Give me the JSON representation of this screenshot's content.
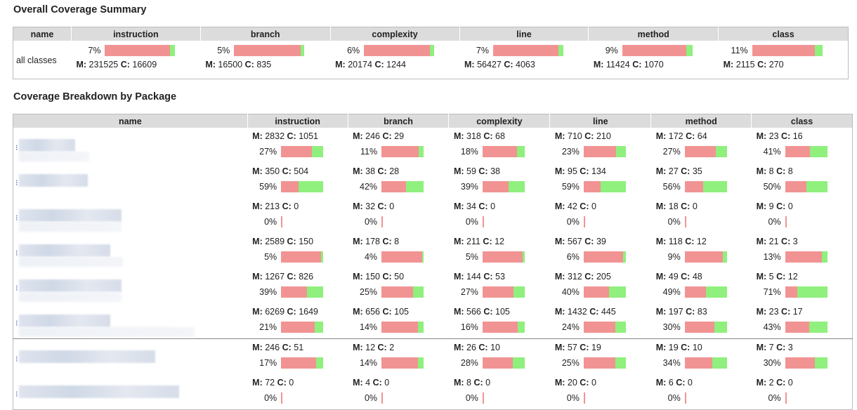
{
  "summary": {
    "title": "Overall Coverage Summary",
    "headers": [
      "name",
      "instruction",
      "branch",
      "complexity",
      "line",
      "method",
      "class"
    ],
    "row": {
      "name": "all classes",
      "metrics": [
        {
          "pct": "7%",
          "m": "231525",
          "c": "16609",
          "covered_fraction": 0.07
        },
        {
          "pct": "5%",
          "m": "16500",
          "c": "835",
          "covered_fraction": 0.05
        },
        {
          "pct": "6%",
          "m": "20174",
          "c": "1244",
          "covered_fraction": 0.06
        },
        {
          "pct": "7%",
          "m": "56427",
          "c": "4063",
          "covered_fraction": 0.07
        },
        {
          "pct": "9%",
          "m": "11424",
          "c": "1070",
          "covered_fraction": 0.09
        },
        {
          "pct": "11%",
          "m": "2115",
          "c": "270",
          "covered_fraction": 0.11
        }
      ]
    },
    "m_label": "M:",
    "c_label": "C:"
  },
  "breakdown": {
    "title": "Coverage Breakdown by Package",
    "headers": [
      "name",
      "instruction",
      "branch",
      "complexity",
      "line",
      "method",
      "class"
    ],
    "rows": [
      {
        "metrics": [
          {
            "pct": "27%",
            "m": "2832",
            "c": "1051",
            "covered_fraction": 0.27
          },
          {
            "pct": "11%",
            "m": "246",
            "c": "29",
            "covered_fraction": 0.11
          },
          {
            "pct": "18%",
            "m": "318",
            "c": "68",
            "covered_fraction": 0.18
          },
          {
            "pct": "23%",
            "m": "710",
            "c": "210",
            "covered_fraction": 0.23
          },
          {
            "pct": "27%",
            "m": "172",
            "c": "64",
            "covered_fraction": 0.27
          },
          {
            "pct": "41%",
            "m": "23",
            "c": "16",
            "covered_fraction": 0.41
          }
        ]
      },
      {
        "metrics": [
          {
            "pct": "59%",
            "m": "350",
            "c": "504",
            "covered_fraction": 0.59
          },
          {
            "pct": "42%",
            "m": "38",
            "c": "28",
            "covered_fraction": 0.42
          },
          {
            "pct": "39%",
            "m": "59",
            "c": "38",
            "covered_fraction": 0.39
          },
          {
            "pct": "59%",
            "m": "95",
            "c": "134",
            "covered_fraction": 0.59
          },
          {
            "pct": "56%",
            "m": "27",
            "c": "35",
            "covered_fraction": 0.56
          },
          {
            "pct": "50%",
            "m": "8",
            "c": "8",
            "covered_fraction": 0.5
          }
        ]
      },
      {
        "metrics": [
          {
            "pct": "0%",
            "m": "213",
            "c": "0",
            "covered_fraction": 0
          },
          {
            "pct": "0%",
            "m": "32",
            "c": "0",
            "covered_fraction": 0
          },
          {
            "pct": "0%",
            "m": "34",
            "c": "0",
            "covered_fraction": 0
          },
          {
            "pct": "0%",
            "m": "42",
            "c": "0",
            "covered_fraction": 0
          },
          {
            "pct": "0%",
            "m": "18",
            "c": "0",
            "covered_fraction": 0
          },
          {
            "pct": "0%",
            "m": "9",
            "c": "0",
            "covered_fraction": 0
          }
        ]
      },
      {
        "metrics": [
          {
            "pct": "5%",
            "m": "2589",
            "c": "150",
            "covered_fraction": 0.05
          },
          {
            "pct": "4%",
            "m": "178",
            "c": "8",
            "covered_fraction": 0.04
          },
          {
            "pct": "5%",
            "m": "211",
            "c": "12",
            "covered_fraction": 0.05
          },
          {
            "pct": "6%",
            "m": "567",
            "c": "39",
            "covered_fraction": 0.06
          },
          {
            "pct": "9%",
            "m": "118",
            "c": "12",
            "covered_fraction": 0.09
          },
          {
            "pct": "13%",
            "m": "21",
            "c": "3",
            "covered_fraction": 0.13
          }
        ]
      },
      {
        "metrics": [
          {
            "pct": "39%",
            "m": "1267",
            "c": "826",
            "covered_fraction": 0.39
          },
          {
            "pct": "25%",
            "m": "150",
            "c": "50",
            "covered_fraction": 0.25
          },
          {
            "pct": "27%",
            "m": "144",
            "c": "53",
            "covered_fraction": 0.27
          },
          {
            "pct": "40%",
            "m": "312",
            "c": "205",
            "covered_fraction": 0.4
          },
          {
            "pct": "49%",
            "m": "49",
            "c": "48",
            "covered_fraction": 0.49
          },
          {
            "pct": "71%",
            "m": "5",
            "c": "12",
            "covered_fraction": 0.71
          }
        ]
      },
      {
        "metrics": [
          {
            "pct": "21%",
            "m": "6269",
            "c": "1649",
            "covered_fraction": 0.21
          },
          {
            "pct": "14%",
            "m": "656",
            "c": "105",
            "covered_fraction": 0.14
          },
          {
            "pct": "16%",
            "m": "566",
            "c": "105",
            "covered_fraction": 0.16
          },
          {
            "pct": "24%",
            "m": "1432",
            "c": "445",
            "covered_fraction": 0.24
          },
          {
            "pct": "30%",
            "m": "197",
            "c": "83",
            "covered_fraction": 0.3
          },
          {
            "pct": "43%",
            "m": "23",
            "c": "17",
            "covered_fraction": 0.43
          }
        ]
      },
      {
        "metrics": [
          {
            "pct": "17%",
            "m": "246",
            "c": "51",
            "covered_fraction": 0.17
          },
          {
            "pct": "14%",
            "m": "12",
            "c": "2",
            "covered_fraction": 0.14
          },
          {
            "pct": "28%",
            "m": "26",
            "c": "10",
            "covered_fraction": 0.28
          },
          {
            "pct": "25%",
            "m": "57",
            "c": "19",
            "covered_fraction": 0.25
          },
          {
            "pct": "34%",
            "m": "19",
            "c": "10",
            "covered_fraction": 0.34
          },
          {
            "pct": "30%",
            "m": "7",
            "c": "3",
            "covered_fraction": 0.3
          }
        ]
      },
      {
        "metrics": [
          {
            "pct": "0%",
            "m": "72",
            "c": "0",
            "covered_fraction": 0
          },
          {
            "pct": "0%",
            "m": "4",
            "c": "0",
            "covered_fraction": 0
          },
          {
            "pct": "0%",
            "m": "8",
            "c": "0",
            "covered_fraction": 0
          },
          {
            "pct": "0%",
            "m": "20",
            "c": "0",
            "covered_fraction": 0
          },
          {
            "pct": "0%",
            "m": "6",
            "c": "0",
            "covered_fraction": 0
          },
          {
            "pct": "0%",
            "m": "2",
            "c": "0",
            "covered_fraction": 0
          }
        ]
      }
    ]
  },
  "colors": {
    "missed": "#f29393",
    "covered": "#8ff07d",
    "header_bg": "#dcdcdc"
  }
}
